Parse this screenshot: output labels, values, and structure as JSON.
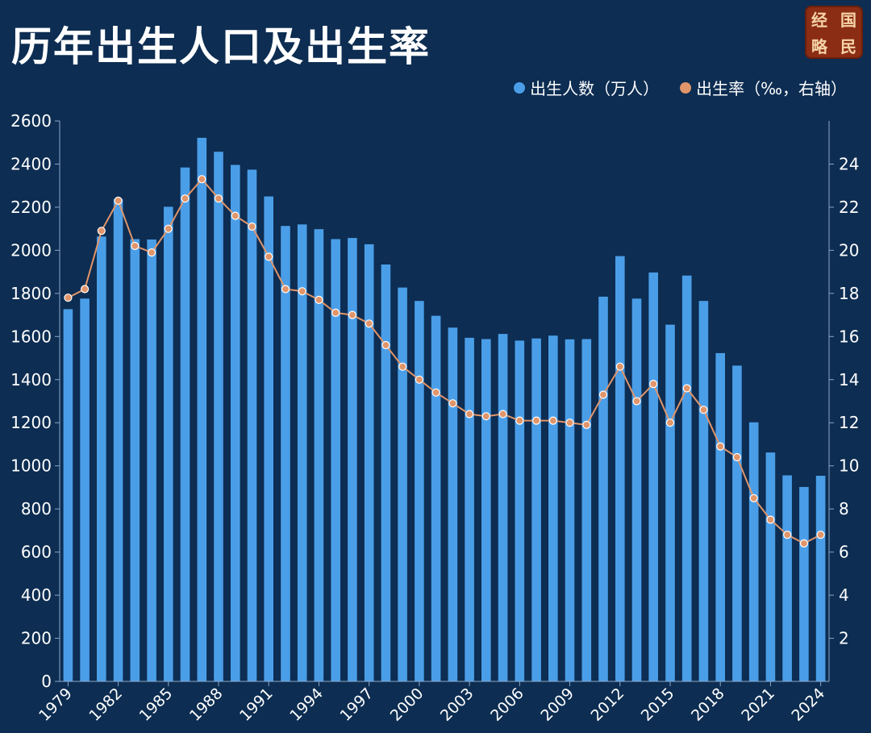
{
  "title": "历年出生人口及出生率",
  "logo": {
    "chars": [
      "经",
      "国",
      "略",
      "民"
    ]
  },
  "legend": {
    "bars": "出生人数（万人）",
    "line": "出生率（‰，右轴）"
  },
  "colors": {
    "background": "#0d2d52",
    "bar": "#4a9ee8",
    "line": "#e0956a",
    "grid": "#1e446e",
    "text": "#ffffff"
  },
  "chart_data": {
    "type": "bar",
    "categories": [
      "1979",
      "1980",
      "1981",
      "1982",
      "1983",
      "1984",
      "1985",
      "1986",
      "1987",
      "1988",
      "1989",
      "1990",
      "1991",
      "1992",
      "1993",
      "1994",
      "1995",
      "1996",
      "1997",
      "1998",
      "1999",
      "2000",
      "2001",
      "2002",
      "2003",
      "2004",
      "2005",
      "2006",
      "2007",
      "2008",
      "2009",
      "2010",
      "2011",
      "2012",
      "2013",
      "2014",
      "2015",
      "2016",
      "2017",
      "2018",
      "2019",
      "2020",
      "2021",
      "2022",
      "2023",
      "2024"
    ],
    "x_tick_labels": [
      "1979",
      "1982",
      "1985",
      "1988",
      "1991",
      "1994",
      "1997",
      "2000",
      "2003",
      "2006",
      "2009",
      "2012",
      "2015",
      "2018",
      "2021",
      "2024"
    ],
    "series": [
      {
        "name": "出生人数（万人）",
        "type": "bar",
        "axis": "left",
        "values": [
          1727,
          1776,
          2064,
          2237,
          2052,
          2050,
          2202,
          2384,
          2522,
          2457,
          2396,
          2374,
          2250,
          2113,
          2120,
          2098,
          2052,
          2057,
          2028,
          1934,
          1827,
          1765,
          1696,
          1641,
          1594,
          1588,
          1612,
          1581,
          1591,
          1604,
          1587,
          1588,
          1785,
          1973,
          1776,
          1897,
          1655,
          1883,
          1765,
          1523,
          1465,
          1202,
          1062,
          956,
          902,
          954
        ]
      },
      {
        "name": "出生率（‰，右轴）",
        "type": "line",
        "axis": "right",
        "values": [
          17.8,
          18.2,
          20.9,
          22.3,
          20.2,
          19.9,
          21.0,
          22.4,
          23.3,
          22.4,
          21.6,
          21.1,
          19.7,
          18.2,
          18.1,
          17.7,
          17.1,
          17.0,
          16.6,
          15.6,
          14.6,
          14.0,
          13.4,
          12.9,
          12.4,
          12.3,
          12.4,
          12.1,
          12.1,
          12.1,
          12.0,
          11.9,
          13.3,
          14.6,
          13.0,
          13.8,
          12.0,
          13.6,
          12.6,
          10.9,
          10.4,
          8.5,
          7.5,
          6.8,
          6.4,
          6.8
        ]
      }
    ],
    "ylim_left": [
      0,
      2600
    ],
    "yticks_left": [
      0,
      200,
      400,
      600,
      800,
      1000,
      1200,
      1400,
      1600,
      1800,
      2000,
      2200,
      2400,
      2600
    ],
    "ylim_right": [
      0,
      26
    ],
    "yticks_right": [
      2,
      4,
      6,
      8,
      10,
      12,
      14,
      16,
      18,
      20,
      22,
      24
    ],
    "grid": false,
    "legend_position": "top-right"
  }
}
